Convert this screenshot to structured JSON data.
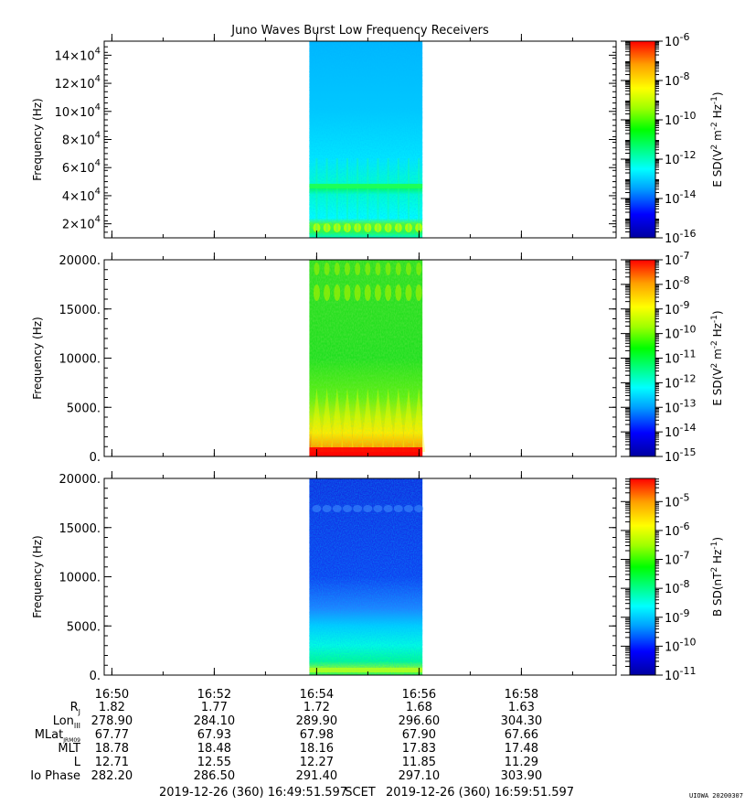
{
  "title": "Juno Waves Burst Low Frequency Receivers",
  "watermark": "UIOWA 20200307",
  "chart_data": [
    {
      "type": "heatmap",
      "ylabel": "Frequency (Hz)",
      "ylim": [
        10000,
        150000
      ],
      "ytick_mantissas": [
        "2",
        "4",
        "6",
        "8",
        "10",
        "12",
        "14"
      ],
      "ytick_exponent": "4",
      "ytick_values": [
        20000,
        40000,
        60000,
        80000,
        100000,
        120000,
        140000
      ],
      "colorbar_label": "E SD (V² m⁻² Hz⁻¹)",
      "colorbar_label_parts": [
        "E SD(V",
        "2",
        " m",
        "-2",
        " Hz",
        "-1",
        ")"
      ],
      "colorbar_exponents": [
        "-6",
        "-8",
        "-10",
        "-12",
        "-14",
        "-16"
      ],
      "colorbar_range": [
        -16,
        -6
      ],
      "data_time_range": [
        "16:53:51.5",
        "16:56:04"
      ]
    },
    {
      "type": "heatmap",
      "ylabel": "Frequency (Hz)",
      "ylim": [
        0,
        20000
      ],
      "ytick_labels": [
        "0.",
        "5000.",
        "10000.",
        "15000.",
        "20000."
      ],
      "ytick_values": [
        0,
        5000,
        10000,
        15000,
        20000
      ],
      "colorbar_label": "E SD (V² m⁻² Hz⁻¹)",
      "colorbar_label_parts": [
        "E SD(V",
        "2",
        " m",
        "-2",
        " Hz",
        "-1",
        ")"
      ],
      "colorbar_exponents": [
        "-7",
        "-8",
        "-9",
        "-10",
        "-11",
        "-12",
        "-13",
        "-14",
        "-15"
      ],
      "colorbar_range": [
        -15,
        -7
      ],
      "data_time_range": [
        "16:53:51.5",
        "16:56:04"
      ]
    },
    {
      "type": "heatmap",
      "ylabel": "Frequency (Hz)",
      "ylim": [
        0,
        20000
      ],
      "ytick_labels": [
        "0.",
        "5000.",
        "10000.",
        "15000.",
        "20000."
      ],
      "ytick_values": [
        0,
        5000,
        10000,
        15000,
        20000
      ],
      "colorbar_label": "B SD (nT² Hz⁻¹)",
      "colorbar_label_parts": [
        "B SD(nT",
        "2",
        " Hz",
        "-1",
        ")"
      ],
      "colorbar_exponents": [
        "-5",
        "-6",
        "-7",
        "-8",
        "-9",
        "-10",
        "-11"
      ],
      "colorbar_range": [
        -11,
        -4.2
      ],
      "data_time_range": [
        "16:53:51.5",
        "16:56:04"
      ]
    }
  ],
  "x_axis": {
    "range_minutes": [
      -0.15,
      9.85
    ],
    "ticks": [
      "16:50",
      "16:52",
      "16:54",
      "16:56",
      "16:58"
    ],
    "tick_minutes": [
      0,
      2,
      4,
      6,
      8
    ]
  },
  "ephemeris": [
    {
      "label": "R",
      "sub": "J",
      "values": [
        "1.82",
        "1.77",
        "1.72",
        "1.68",
        "1.63"
      ]
    },
    {
      "label": "Lon",
      "sub": "III",
      "values": [
        "278.90",
        "284.10",
        "289.90",
        "296.60",
        "304.30"
      ]
    },
    {
      "label": "MLat",
      "sub": "JRM09",
      "values": [
        "67.77",
        "67.93",
        "67.98",
        "67.90",
        "67.66"
      ]
    },
    {
      "label": "MLT",
      "sub": "",
      "values": [
        "18.78",
        "18.48",
        "18.16",
        "17.83",
        "17.48"
      ]
    },
    {
      "label": "L",
      "sub": "",
      "values": [
        "12.71",
        "12.55",
        "12.27",
        "11.85",
        "11.29"
      ]
    },
    {
      "label": "Io Phase",
      "sub": "",
      "values": [
        "282.20",
        "286.50",
        "291.40",
        "297.10",
        "303.90"
      ]
    }
  ],
  "time_range": {
    "start": "2019-12-26 (360) 16:49:51.597",
    "scet_label": "SCET",
    "end": "2019-12-26 (360) 16:59:51.597"
  },
  "colors": {
    "axis": "#000000",
    "colormap": [
      "#0000a0",
      "#0000ff",
      "#00a0ff",
      "#00ffff",
      "#00ff80",
      "#00ff00",
      "#a0ff00",
      "#ffff00",
      "#ffa000",
      "#ff0000"
    ]
  }
}
